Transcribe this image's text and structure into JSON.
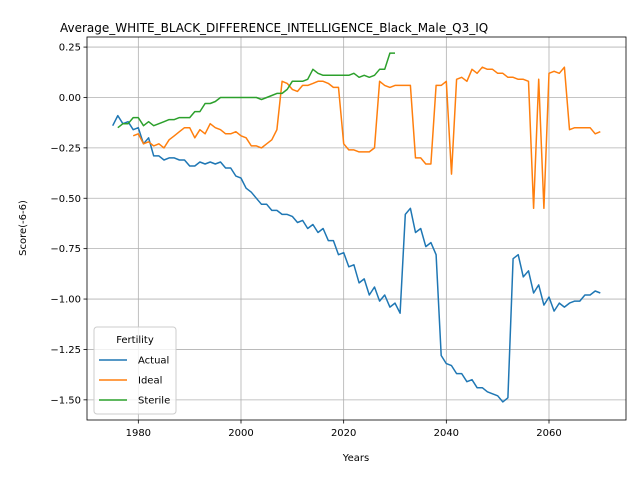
{
  "chart_data": {
    "type": "line",
    "title": "Average_WHITE_BLACK_DIFFERENCE_INTELLIGENCE_Black_Male_Q3_IQ",
    "xlabel": "Years",
    "ylabel": "Score(-6-6)",
    "xlim": [
      1970,
      2075
    ],
    "ylim": [
      -1.6,
      0.3
    ],
    "xticks": [
      1980,
      2000,
      2020,
      2040,
      2060
    ],
    "yticks": [
      -1.5,
      -1.25,
      -1.0,
      -0.75,
      -0.5,
      -0.25,
      0.0,
      0.25
    ],
    "ytick_labels": [
      "−1.50",
      "−1.25",
      "−1.00",
      "−0.75",
      "−0.50",
      "−0.25",
      "0.00",
      "0.25"
    ],
    "grid": true,
    "legend": {
      "title": "Fertility",
      "placement": "lower-left"
    },
    "series": [
      {
        "name": "Actual",
        "color": "#1f77b4",
        "x": [
          1975,
          1976,
          1977,
          1978,
          1979,
          1980,
          1981,
          1982,
          1983,
          1984,
          1985,
          1986,
          1987,
          1988,
          1989,
          1990,
          1991,
          1992,
          1993,
          1994,
          1995,
          1996,
          1997,
          1998,
          1999,
          2000,
          2001,
          2002,
          2003,
          2004,
          2005,
          2006,
          2007,
          2008,
          2009,
          2010,
          2011,
          2012,
          2013,
          2014,
          2015,
          2016,
          2017,
          2018,
          2019,
          2020,
          2021,
          2022,
          2023,
          2024,
          2025,
          2026,
          2027,
          2028,
          2029,
          2030,
          2031,
          2032,
          2033,
          2034,
          2035,
          2036,
          2037,
          2038,
          2039,
          2040,
          2041,
          2042,
          2043,
          2044,
          2045,
          2046,
          2047,
          2048,
          2049,
          2050,
          2051,
          2052,
          2053,
          2054,
          2055,
          2056,
          2057,
          2058,
          2059,
          2060,
          2061,
          2062,
          2063,
          2064,
          2065,
          2066,
          2067,
          2068,
          2069,
          2070
        ],
        "values": [
          -0.14,
          -0.09,
          -0.13,
          -0.12,
          -0.16,
          -0.15,
          -0.23,
          -0.2,
          -0.29,
          -0.29,
          -0.31,
          -0.3,
          -0.3,
          -0.31,
          -0.31,
          -0.34,
          -0.34,
          -0.32,
          -0.33,
          -0.32,
          -0.33,
          -0.32,
          -0.35,
          -0.35,
          -0.39,
          -0.4,
          -0.45,
          -0.47,
          -0.5,
          -0.53,
          -0.53,
          -0.56,
          -0.56,
          -0.58,
          -0.58,
          -0.59,
          -0.62,
          -0.61,
          -0.65,
          -0.63,
          -0.67,
          -0.65,
          -0.71,
          -0.71,
          -0.78,
          -0.77,
          -0.84,
          -0.83,
          -0.92,
          -0.9,
          -0.98,
          -0.94,
          -1.01,
          -0.98,
          -1.04,
          -1.02,
          -1.07,
          -0.58,
          -0.55,
          -0.67,
          -0.65,
          -0.74,
          -0.72,
          -0.78,
          -1.28,
          -1.32,
          -1.33,
          -1.37,
          -1.37,
          -1.41,
          -1.4,
          -1.44,
          -1.44,
          -1.46,
          -1.47,
          -1.48,
          -1.51,
          -1.49,
          -0.8,
          -0.78,
          -0.89,
          -0.86,
          -0.97,
          -0.93,
          -1.03,
          -0.99,
          -1.06,
          -1.02,
          -1.04,
          -1.02,
          -1.01,
          -1.01,
          -0.98,
          -0.98,
          -0.96,
          -0.97
        ]
      },
      {
        "name": "Ideal",
        "color": "#ff7f0e",
        "x": [
          1979,
          1980,
          1981,
          1982,
          1983,
          1984,
          1985,
          1986,
          1987,
          1988,
          1989,
          1990,
          1991,
          1992,
          1993,
          1994,
          1995,
          1996,
          1997,
          1998,
          1999,
          2000,
          2001,
          2002,
          2003,
          2004,
          2005,
          2006,
          2007,
          2008,
          2009,
          2010,
          2011,
          2012,
          2013,
          2014,
          2015,
          2016,
          2017,
          2018,
          2019,
          2020,
          2021,
          2022,
          2023,
          2024,
          2025,
          2026,
          2027,
          2028,
          2029,
          2030,
          2031,
          2032,
          2033,
          2034,
          2035,
          2036,
          2037,
          2038,
          2039,
          2040,
          2041,
          2042,
          2043,
          2044,
          2045,
          2046,
          2047,
          2048,
          2049,
          2050,
          2051,
          2052,
          2053,
          2054,
          2055,
          2056,
          2057,
          2058,
          2059,
          2060,
          2061,
          2062,
          2063,
          2064,
          2065,
          2066,
          2067,
          2068,
          2069,
          2070
        ],
        "values": [
          -0.19,
          -0.18,
          -0.23,
          -0.22,
          -0.24,
          -0.23,
          -0.25,
          -0.21,
          -0.19,
          -0.17,
          -0.15,
          -0.15,
          -0.2,
          -0.16,
          -0.18,
          -0.13,
          -0.15,
          -0.16,
          -0.18,
          -0.18,
          -0.17,
          -0.19,
          -0.2,
          -0.24,
          -0.24,
          -0.25,
          -0.23,
          -0.21,
          -0.16,
          0.08,
          0.07,
          0.04,
          0.03,
          0.06,
          0.06,
          0.07,
          0.08,
          0.08,
          0.07,
          0.05,
          0.05,
          -0.23,
          -0.26,
          -0.26,
          -0.27,
          -0.27,
          -0.27,
          -0.25,
          0.08,
          0.06,
          0.05,
          0.06,
          0.06,
          0.06,
          0.06,
          -0.3,
          -0.3,
          -0.33,
          -0.33,
          0.06,
          0.06,
          0.08,
          -0.38,
          0.09,
          0.1,
          0.08,
          0.14,
          0.12,
          0.15,
          0.14,
          0.14,
          0.12,
          0.12,
          0.1,
          0.1,
          0.09,
          0.09,
          0.08,
          -0.55,
          0.09,
          -0.55,
          0.12,
          0.13,
          0.12,
          0.15,
          -0.16,
          -0.15,
          -0.15,
          -0.15,
          -0.15,
          -0.18,
          -0.17
        ]
      },
      {
        "name": "Sterile",
        "color": "#2ca02c",
        "x": [
          1976,
          1977,
          1978,
          1979,
          1980,
          1981,
          1982,
          1983,
          1984,
          1985,
          1986,
          1987,
          1988,
          1989,
          1990,
          1991,
          1992,
          1993,
          1994,
          1995,
          1996,
          1997,
          1998,
          1999,
          2000,
          2001,
          2002,
          2003,
          2004,
          2005,
          2006,
          2007,
          2008,
          2009,
          2010,
          2011,
          2012,
          2013,
          2014,
          2015,
          2016,
          2017,
          2018,
          2019,
          2020,
          2021,
          2022,
          2023,
          2024,
          2025,
          2026,
          2027,
          2028,
          2029,
          2030
        ],
        "values": [
          -0.15,
          -0.13,
          -0.13,
          -0.1,
          -0.1,
          -0.14,
          -0.12,
          -0.14,
          -0.13,
          -0.12,
          -0.11,
          -0.11,
          -0.1,
          -0.1,
          -0.1,
          -0.07,
          -0.07,
          -0.03,
          -0.03,
          -0.02,
          0.0,
          0.0,
          0.0,
          0.0,
          0.0,
          0.0,
          0.0,
          0.0,
          -0.01,
          0.0,
          0.01,
          0.02,
          0.02,
          0.04,
          0.08,
          0.08,
          0.08,
          0.09,
          0.14,
          0.12,
          0.11,
          0.11,
          0.11,
          0.11,
          0.11,
          0.11,
          0.12,
          0.1,
          0.11,
          0.1,
          0.11,
          0.14,
          0.14,
          0.22,
          0.22
        ]
      }
    ]
  }
}
